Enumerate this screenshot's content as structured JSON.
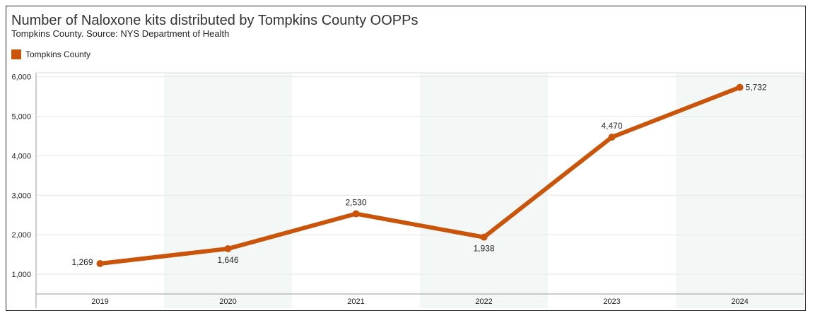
{
  "chart_data": {
    "type": "line",
    "title": "Number of Naloxone kits distributed by Tompkins County OOPPs",
    "subtitle": "Tompkins County. Source: NYS Department of Health",
    "categories": [
      "2019",
      "2020",
      "2021",
      "2022",
      "2023",
      "2024"
    ],
    "series": [
      {
        "name": "Tompkins County",
        "values": [
          1269,
          1646,
          2530,
          1938,
          4470,
          5732
        ],
        "labels": [
          "1,269",
          "1,646",
          "2,530",
          "1,938",
          "4,470",
          "5,732"
        ]
      }
    ],
    "yticks": [
      "1,000",
      "2,000",
      "3,000",
      "4,000",
      "5,000",
      "6,000"
    ],
    "ytick_values": [
      1000,
      2000,
      3000,
      4000,
      5000,
      6000
    ],
    "ylim": [
      500,
      6100
    ],
    "xlabel": "",
    "ylabel": "",
    "grid": true,
    "legend_position": "top-left"
  },
  "colors": {
    "series": "#c9540a",
    "band": "#f3f8f7",
    "grid": "#e6e6e6",
    "axis": "#999999"
  }
}
